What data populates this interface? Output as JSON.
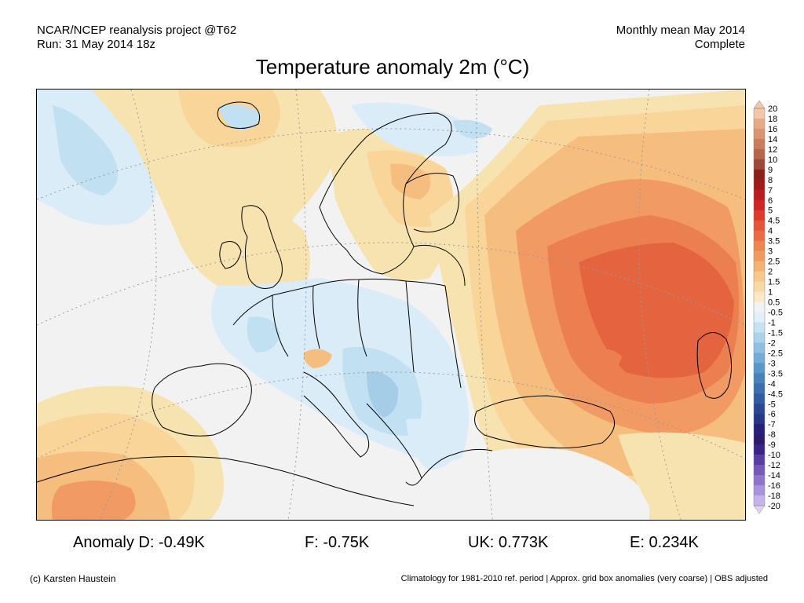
{
  "header": {
    "project": "NCAR/NCEP reanalysis project @T62",
    "run": "Run: 31 May 2014 18z",
    "period": "Monthly mean May 2014",
    "status": "Complete"
  },
  "title": "Temperature anomaly 2m (°C)",
  "map": {
    "region": "Europe",
    "colors": {
      "background": "#f2f2f2",
      "warm_1": "#f7e3b0",
      "warm_1_5": "#f9d59a",
      "warm_2": "#f5bd7e",
      "warm_2_5": "#f29a63",
      "warm_3": "#ec7f4f",
      "warm_3_5": "#e46440",
      "cool_05": "#d9ecf8",
      "cool_1": "#c1e0f2",
      "cool_15": "#a5cde8",
      "coast": "#000000",
      "grid": "#9a9a9a"
    }
  },
  "colorbar": {
    "levels": [
      "20",
      "18",
      "16",
      "14",
      "12",
      "10",
      "9",
      "8",
      "7",
      "6",
      "5",
      "4.5",
      "4",
      "3.5",
      "3",
      "2.5",
      "2",
      "1.5",
      "1",
      "0.5",
      "-0.5",
      "-1",
      "-1.5",
      "-2",
      "-2.5",
      "-3",
      "-3.5",
      "-4",
      "-4.5",
      "-5",
      "-6",
      "-7",
      "-8",
      "-9",
      "-10",
      "-12",
      "-14",
      "-16",
      "-18",
      "-20"
    ],
    "colors": [
      "#f1c7a8",
      "#e7aa87",
      "#dc9370",
      "#c97d5d",
      "#b5654b",
      "#9d4939",
      "#8c1f1a",
      "#a01a1a",
      "#b81c1c",
      "#d02424",
      "#dd3a2c",
      "#e55539",
      "#eb6a44",
      "#f0864f",
      "#f29a5f",
      "#f6b272",
      "#f8c98a",
      "#fad9a4",
      "#fbe9c4",
      "#f2f2f2",
      "#e1eff8",
      "#c7e2f3",
      "#acd3ec",
      "#8fbfe1",
      "#73acd6",
      "#5a97c8",
      "#4782bb",
      "#3b6eac",
      "#325ca0",
      "#2b4793",
      "#273785",
      "#271f78",
      "#2d1a6a",
      "#3a2485",
      "#5a3fa3",
      "#7459b8",
      "#8e74cb",
      "#a993dc",
      "#c4b4ea",
      "#ddd2f5"
    ]
  },
  "stats": {
    "germany": "Anomaly D: -0.49K",
    "france": "F: -0.75K",
    "uk": "UK: 0.773K",
    "england": "E: 0.234K"
  },
  "footer": {
    "credit": "(c) Karsten Haustein",
    "note": "Climatology for 1981-2010 ref. period | Approx. grid box anomalies (very coarse) | OBS adjusted"
  }
}
